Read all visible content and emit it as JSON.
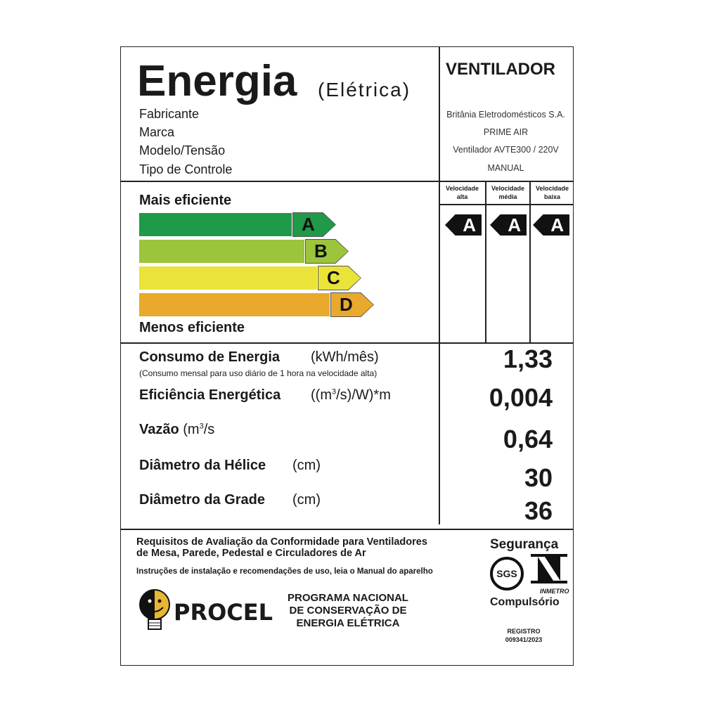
{
  "header": {
    "title": "Energia",
    "subtitle": "(Elétrica)",
    "product": "VENTILADOR"
  },
  "info": [
    {
      "label": "Fabricante",
      "value": "Britânia Eletrodomésticos S.A."
    },
    {
      "label": "Marca",
      "value": "PRIME AIR"
    },
    {
      "label": "Modelo/Tensão",
      "value": "Ventilador AVTE300 / 220V"
    },
    {
      "label": "Tipo de Controle",
      "value": "MANUAL"
    }
  ],
  "scale": {
    "top_label": "Mais eficiente",
    "bottom_label": "Menos eficiente",
    "classes": [
      {
        "letter": "A",
        "color": "#1e9a48"
      },
      {
        "letter": "B",
        "color": "#9cc43c"
      },
      {
        "letter": "C",
        "color": "#e9e33a"
      },
      {
        "letter": "D",
        "color": "#e8a92c"
      }
    ]
  },
  "speeds": [
    {
      "label": "Velocidade alta",
      "rating": "A"
    },
    {
      "label": "Velocidade média",
      "rating": "A"
    },
    {
      "label": "Velocidade baixa",
      "rating": "A"
    }
  ],
  "metrics": {
    "consumo": {
      "label": "Consumo de Energia",
      "unit": "(kWh/mês)",
      "note": "(Consumo mensal para uso diário de 1 hora na velocidade alta)",
      "value": "1,33"
    },
    "eficiencia": {
      "label": "Eficiência Energética",
      "unit_a": "((m",
      "unit_sup": "3",
      "unit_b": "/s)/W)*m",
      "value": "0,004"
    },
    "vazao": {
      "label": "Vazão",
      "unit_a": "(m",
      "unit_sup": "3",
      "unit_b": "/s",
      "value": "0,64"
    },
    "helice": {
      "label": "Diâmetro da Hélice",
      "unit": "(cm)",
      "value": "30"
    },
    "grade": {
      "label": "Diâmetro da Grade",
      "unit": "(cm)",
      "value": "36"
    }
  },
  "footer": {
    "requisitos_1": "Requisitos de Avaliação da Conformidade para Ventiladores",
    "requisitos_2": "de Mesa, Parede, Pedestal e Circuladores de Ar",
    "instrucoes": "Instruções de instalação e recomendações de uso, leia o Manual do aparelho",
    "procel": "PROCEL",
    "programa_1": "PROGRAMA NACIONAL",
    "programa_2": "DE CONSERVAÇÃO DE",
    "programa_3": "ENERGIA ELÉTRICA",
    "seguranca": "Segurança",
    "sgs": "SGS",
    "inmetro": "INMETRO",
    "compulsorio": "Compulsório",
    "registro_label": "REGISTRO",
    "registro_num": "009341/2023"
  }
}
